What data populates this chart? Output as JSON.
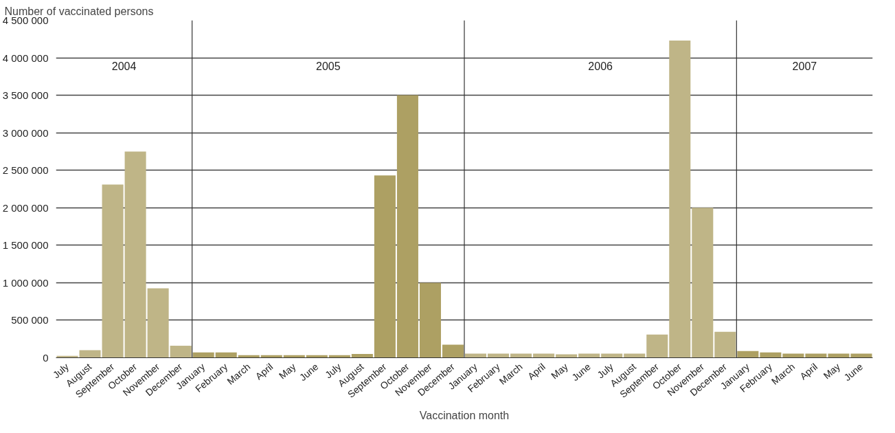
{
  "chart_data": {
    "type": "bar",
    "ylabel": "Number of vaccinated persons",
    "xlabel": "Vaccination month",
    "categories": [
      "July",
      "August",
      "September",
      "October",
      "November",
      "December",
      "January",
      "February",
      "March",
      "April",
      "May",
      "June",
      "July",
      "August",
      "September",
      "October",
      "November",
      "December",
      "January",
      "February",
      "March",
      "April",
      "May",
      "June",
      "July",
      "August",
      "September",
      "October",
      "November",
      "December",
      "January",
      "February",
      "March",
      "April",
      "May",
      "June"
    ],
    "values": [
      25000,
      100000,
      2310000,
      2750000,
      925000,
      160000,
      70000,
      70000,
      35000,
      35000,
      35000,
      35000,
      35000,
      50000,
      2430000,
      3500000,
      1000000,
      175000,
      55000,
      55000,
      55000,
      55000,
      45000,
      55000,
      55000,
      55000,
      310000,
      4230000,
      2000000,
      345000,
      90000,
      70000,
      55000,
      55000,
      55000,
      55000
    ],
    "colors": [
      "#bfb587",
      "#bfb587",
      "#bfb587",
      "#bfb587",
      "#bfb587",
      "#bfb587",
      "#ada063",
      "#ada063",
      "#ada063",
      "#ada063",
      "#ada063",
      "#ada063",
      "#ada063",
      "#ada063",
      "#ada063",
      "#ada063",
      "#ada063",
      "#ada063",
      "#bfb587",
      "#bfb587",
      "#bfb587",
      "#bfb587",
      "#bfb587",
      "#bfb587",
      "#bfb587",
      "#bfb587",
      "#bfb587",
      "#bfb587",
      "#bfb587",
      "#bfb587",
      "#ada063",
      "#ada063",
      "#ada063",
      "#ada063",
      "#ada063",
      "#ada063"
    ],
    "annotations": [
      "2004",
      "2005",
      "2006",
      "2007"
    ],
    "ylim": [
      0,
      4500000
    ],
    "yticks": [
      {
        "value": 0,
        "label": "0"
      },
      {
        "value": 500000,
        "label": "500 000"
      },
      {
        "value": 1000000,
        "label": "1 000 000"
      },
      {
        "value": 1500000,
        "label": "1 500 000"
      },
      {
        "value": 2000000,
        "label": "2 000 000"
      },
      {
        "value": 2500000,
        "label": "2 500 000"
      },
      {
        "value": 3000000,
        "label": "3 000 000"
      },
      {
        "value": 3500000,
        "label": "3 500 000"
      },
      {
        "value": 4000000,
        "label": "4 000 000"
      },
      {
        "value": 4500000,
        "label": "4 500 000"
      }
    ],
    "grid": "y"
  }
}
